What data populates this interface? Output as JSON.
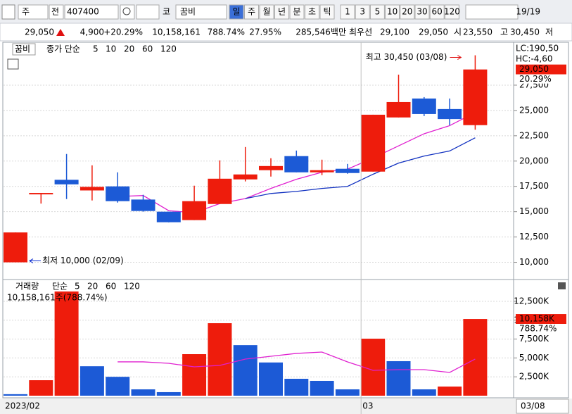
{
  "toolbar": {
    "market": "주",
    "mode": "전",
    "code": "407400",
    "exchange": "코",
    "name": "꿈비",
    "periods": [
      "일",
      "주",
      "월",
      "년",
      "분",
      "초",
      "틱"
    ],
    "intervals": [
      "1",
      "3",
      "5",
      "10",
      "20",
      "30",
      "60",
      "120"
    ],
    "page": "19/19"
  },
  "quote": {
    "price": "29,050",
    "change": "4,900",
    "change_rate": "+20.29%",
    "volume": "10,158,161",
    "volume_rate": "788.74%",
    "turnover": "27.95%",
    "amount": "285,546백만",
    "best_label": "최우선",
    "ask": "29,100",
    "bid": "29,050",
    "open_label": "시",
    "open": "23,550",
    "high_label": "고",
    "high": "30,450",
    "low_label": "저"
  },
  "chart_data": [
    {
      "type": "candlestick",
      "name": "꿈비",
      "ma_label": "종가 단순",
      "categories": [
        "2023/02",
        null,
        null,
        null,
        null,
        null,
        null,
        null,
        null,
        null,
        null,
        null,
        null,
        null,
        "03",
        null,
        null,
        null,
        null
      ],
      "open": [
        10000,
        16750,
        18150,
        17100,
        17500,
        16200,
        15000,
        14170,
        15760,
        18190,
        19100,
        20490,
        18890,
        19240,
        18960,
        24310,
        26180,
        25140,
        23550
      ],
      "high": [
        12950,
        16850,
        20700,
        19580,
        18890,
        16670,
        15000,
        17570,
        20070,
        21390,
        20280,
        21040,
        20140,
        19720,
        24580,
        28540,
        26320,
        26180,
        30450
      ],
      "low": [
        10000,
        15800,
        16250,
        16110,
        15900,
        15000,
        13950,
        14170,
        15760,
        17990,
        18470,
        18890,
        18610,
        18750,
        18960,
        24310,
        24440,
        23540,
        23100
      ],
      "close": [
        12950,
        16850,
        17700,
        17450,
        16040,
        15070,
        13960,
        16040,
        18260,
        18680,
        19510,
        18890,
        19100,
        18820,
        24580,
        25830,
        24650,
        24150,
        29050
      ],
      "up_color": "#ee1c0c",
      "down_color": "#1c5ad6",
      "series": [
        {
          "name": "5",
          "color": "#e020d0",
          "values": [
            null,
            null,
            null,
            null,
            16500,
            16600,
            15100,
            14900,
            15800,
            16300,
            17300,
            18200,
            18900,
            19200,
            20300,
            21500,
            22700,
            23500,
            24800
          ]
        },
        {
          "name": "10",
          "color": "#1030c0",
          "values": [
            null,
            null,
            null,
            null,
            null,
            null,
            null,
            null,
            null,
            16300,
            16800,
            17000,
            17300,
            17500,
            18700,
            19800,
            20500,
            21000,
            22300
          ]
        },
        {
          "name": "20",
          "color": "#e0a000",
          "values": [
            null,
            null,
            null,
            null,
            null,
            null,
            null,
            null,
            null,
            null,
            null,
            null,
            null,
            null,
            null,
            null,
            null,
            null,
            null
          ]
        },
        {
          "name": "60",
          "color": "#20a040",
          "values": [
            null,
            null,
            null,
            null,
            null,
            null,
            null,
            null,
            null,
            null,
            null,
            null,
            null,
            null,
            null,
            null,
            null,
            null,
            null
          ]
        },
        {
          "name": "120",
          "color": "#909090",
          "values": [
            null,
            null,
            null,
            null,
            null,
            null,
            null,
            null,
            null,
            null,
            null,
            null,
            null,
            null,
            null,
            null,
            null,
            null,
            null
          ]
        }
      ],
      "ylim": [
        8300,
        31600
      ],
      "yticks": [
        {
          "value": 10000,
          "label": "10,000"
        },
        {
          "value": 12500,
          "label": "12,500"
        },
        {
          "value": 15000,
          "label": "15,000"
        },
        {
          "value": 17500,
          "label": "17,500"
        },
        {
          "value": 20000,
          "label": "20,000"
        },
        {
          "value": 22500,
          "label": "22,500"
        },
        {
          "value": 25000,
          "label": "25,000"
        },
        {
          "value": 27500,
          "label": "27,500"
        }
      ],
      "grid": true,
      "lc_label": "LC:190,50",
      "hc_label": "HC:-4,60",
      "last_label": "29,050",
      "rate_label": "20.29%",
      "high_note": "최고 30,450 (03/08)",
      "low_note": "최저 10,000 (02/09)"
    },
    {
      "type": "bar",
      "name": "거래량",
      "ma_label": "단순",
      "info": "10,158,161주(788.74%)",
      "values": [
        200,
        2050,
        13800,
        3900,
        2500,
        840,
        470,
        5500,
        9600,
        6700,
        4400,
        2240,
        1960,
        840,
        7550,
        4570,
        840,
        1210,
        10158
      ],
      "up_color": "#ee1c0c",
      "down_color": "#1c5ad6",
      "series": [
        {
          "name": "5",
          "color": "#e020d0",
          "values": [
            null,
            null,
            null,
            null,
            4480,
            4480,
            4290,
            3820,
            4010,
            4850,
            5220,
            5600,
            5780,
            4480,
            3360,
            3450,
            3450,
            3080,
            4850
          ]
        },
        {
          "name": "20",
          "color": "#e0a000",
          "values": [
            null,
            null,
            null,
            null,
            null,
            null,
            null,
            null,
            null,
            null,
            null,
            null,
            null,
            null,
            null,
            null,
            null,
            null,
            null
          ]
        },
        {
          "name": "60",
          "color": "#20a040",
          "values": [
            null,
            null,
            null,
            null,
            null,
            null,
            null,
            null,
            null,
            null,
            null,
            null,
            null,
            null,
            null,
            null,
            null,
            null,
            null
          ]
        },
        {
          "name": "120",
          "color": "#909090",
          "values": [
            null,
            null,
            null,
            null,
            null,
            null,
            null,
            null,
            null,
            null,
            null,
            null,
            null,
            null,
            null,
            null,
            null,
            null,
            null
          ]
        }
      ],
      "ylim": [
        0,
        13800
      ],
      "yticks": [
        {
          "value": 2500,
          "label": "2,500K"
        },
        {
          "value": 5000,
          "label": "5,000K"
        },
        {
          "value": 7500,
          "label": "7,500K"
        },
        {
          "value": 10000,
          "label": "10,000K"
        },
        {
          "value": 12500,
          "label": "12,500K"
        }
      ],
      "grid": true,
      "last_label": "10,158K",
      "rate_label": "788.74%",
      "cursor_date": "03/08"
    }
  ]
}
